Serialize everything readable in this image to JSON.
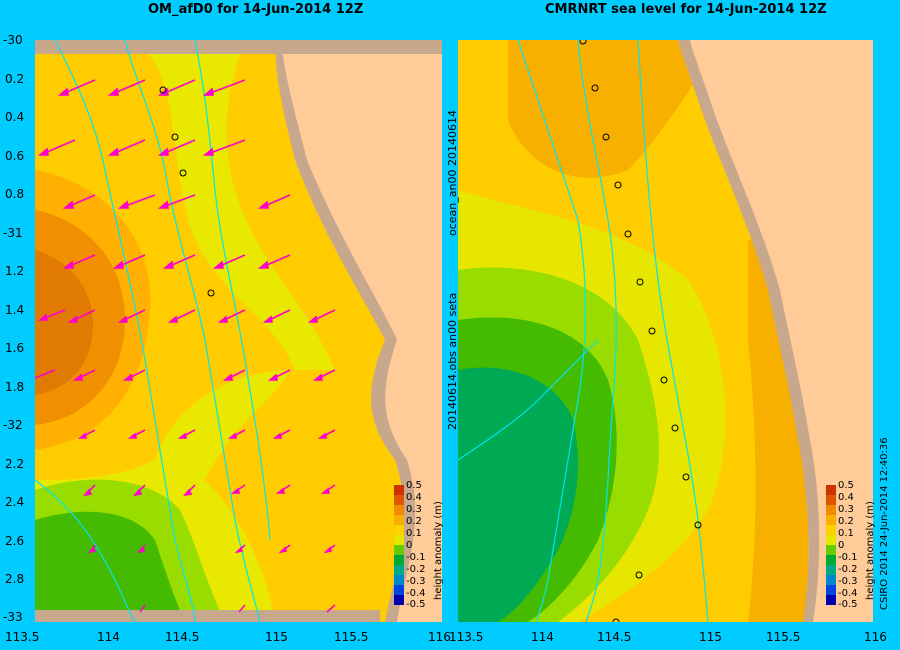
{
  "left_panel": {
    "title": "OM_afD0 for 14-Jun-2014 12Z",
    "y_ticks": [
      "-30",
      "0.2",
      "0.4",
      "0.6",
      "0.8",
      "-31",
      "1.2",
      "1.4",
      "1.6",
      "1.8",
      "-32",
      "2.2",
      "2.4",
      "2.6",
      "2.8",
      "-33"
    ],
    "x_ticks": [
      "113.5",
      "114",
      "114.5",
      "115",
      "115.5",
      "116"
    ]
  },
  "right_panel": {
    "title": "CMRNRT sea level  for 14-Jun-2014 12Z",
    "x_ticks": [
      "113.5",
      "114",
      "114.5",
      "115",
      "115.5",
      "116"
    ],
    "side_label_1": "ocean_an00  20140614",
    "side_label_2": "20140614.obs  an00  seta"
  },
  "colorbar": {
    "title": "height anomaly (m)",
    "ticks": [
      "0.5",
      "0.4",
      "0.3",
      "0.2",
      "0.1",
      "0",
      "-0.1",
      "-0.2",
      "-0.3",
      "-0.4",
      "-0.5"
    ],
    "colors": [
      "#cc3300",
      "#e05500",
      "#f08a00",
      "#f8b000",
      "#ffd000",
      "#e6e600",
      "#b3e000",
      "#66cc00",
      "#00aa33",
      "#00aa88",
      "#0088cc",
      "#0044dd",
      "#0000aa"
    ]
  },
  "footer": {
    "copyright": "CSIRO 2014   24-Jun-2014 12:40:36"
  },
  "colors": {
    "background": "#00ccff",
    "land": "#ffcc99",
    "shelf": "#c8a88c",
    "arrows": "#ff00cc",
    "bathymetry": "#00e5ee"
  }
}
